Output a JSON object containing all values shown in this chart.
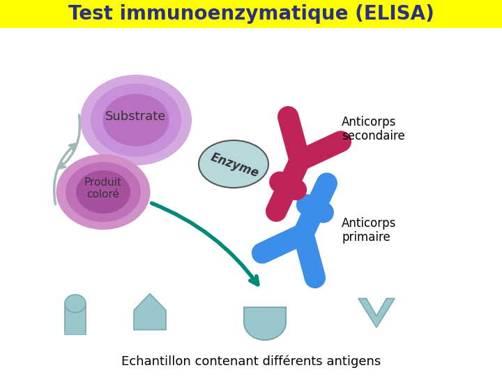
{
  "title": "Test immunoenzymatique (ELISA)",
  "title_bg": "#FFFF00",
  "title_color": "#2B3080",
  "title_fontsize": 20,
  "substrate_label": "Substrate",
  "enzyme_label": "Enzyme",
  "produit_label": "Produit\ncoloré",
  "anticorps_sec_label": "Anticorps\nsecondaire",
  "anticorps_prim_label": "Anticorps\nprimaire",
  "bottom_label": "Echantillon contenant différents antigens",
  "bg_color": "#FFFFFF",
  "antibody_secondary_color": "#C0235A",
  "antibody_primary_color": "#3B8FE8",
  "enzyme_ellipse_color": "#B8D8DC",
  "substrate_fill": "#C090C8",
  "produit_fill": "#B870A8",
  "arrow_color": "#008878",
  "curved_arrow_color": "#A0B8B8",
  "antigen_color": "#98C8CC",
  "antigen_edge": "#78A8AC"
}
